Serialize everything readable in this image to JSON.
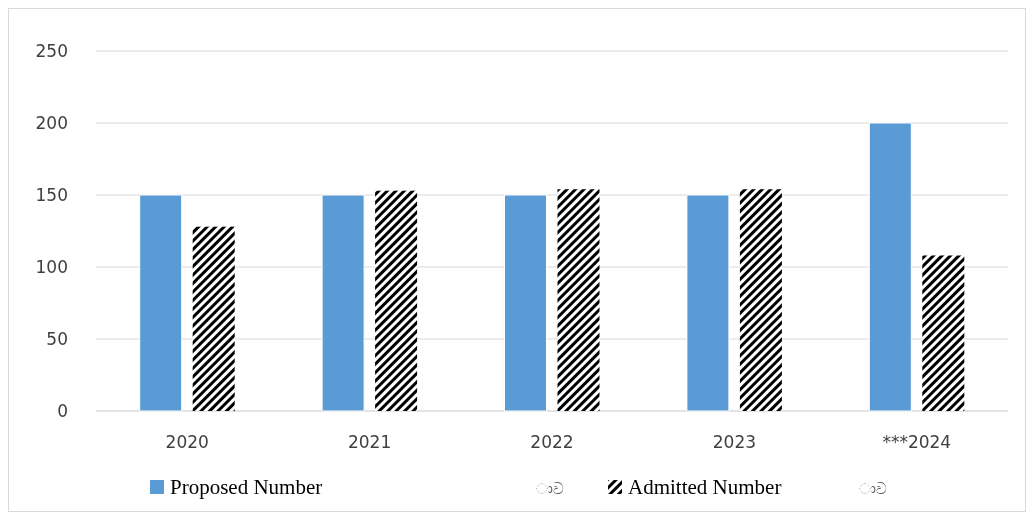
{
  "chart_data": {
    "type": "bar",
    "categories": [
      "2020",
      "2021",
      "2022",
      "2023",
      "***2024"
    ],
    "series": [
      {
        "name": "Proposed Number",
        "color": "#5b9bd5",
        "values": [
          150,
          150,
          150,
          150,
          200
        ]
      },
      {
        "name": "Admitted Number",
        "color": "#000000",
        "values": [
          128,
          153,
          154,
          154,
          108
        ]
      }
    ],
    "ylim": [
      0,
      250
    ],
    "yticks": [
      0,
      50,
      100,
      150,
      200,
      250
    ],
    "grid": "y",
    "legend": "bottom",
    "annotations": [
      "ාව",
      "ාව"
    ]
  }
}
